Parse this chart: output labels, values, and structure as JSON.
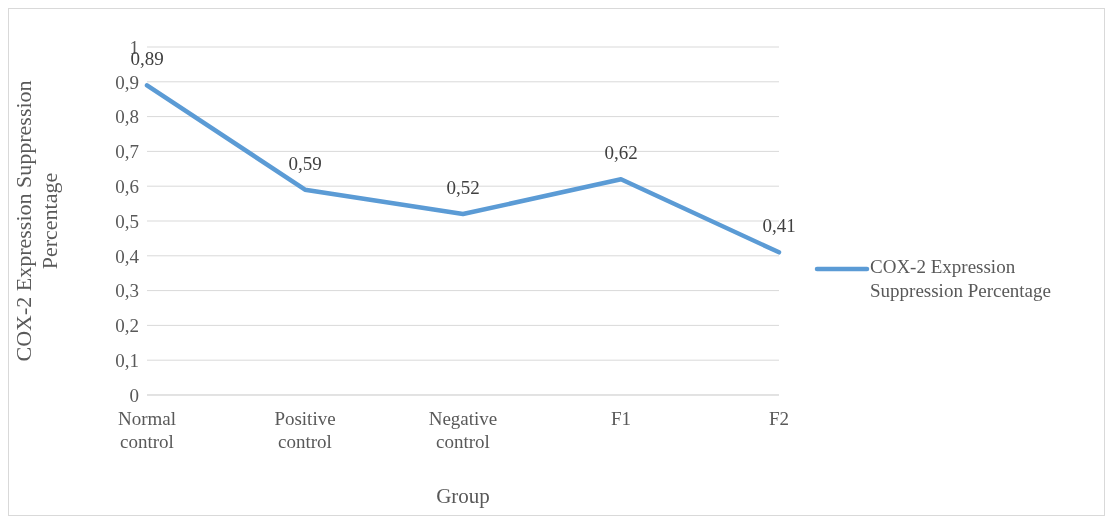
{
  "chart_data": {
    "type": "line",
    "xlabel": "Group",
    "ylabel": "COX-2 Expression Suppression Percentage",
    "categories": [
      "Normal control",
      "Positive control",
      "Negative control",
      "F1",
      "F2"
    ],
    "series": [
      {
        "name": "COX-2 Expression Suppression Percentage",
        "color": "#5b9bd5",
        "values": [
          0.89,
          0.59,
          0.52,
          0.62,
          0.41
        ],
        "value_labels": [
          "0,89",
          "0,59",
          "0,52",
          "0,62",
          "0,41"
        ]
      }
    ],
    "ylim": [
      0,
      1
    ],
    "yticks": [
      {
        "value": 0,
        "label": "0"
      },
      {
        "value": 0.1,
        "label": "0,1"
      },
      {
        "value": 0.2,
        "label": "0,2"
      },
      {
        "value": 0.3,
        "label": "0,3"
      },
      {
        "value": 0.4,
        "label": "0,4"
      },
      {
        "value": 0.5,
        "label": "0,5"
      },
      {
        "value": 0.6,
        "label": "0,6"
      },
      {
        "value": 0.7,
        "label": "0,7"
      },
      {
        "value": 0.8,
        "label": "0,8"
      },
      {
        "value": 0.9,
        "label": "0,9"
      },
      {
        "value": 1,
        "label": "1"
      }
    ],
    "grid": "y",
    "legend": "right",
    "marker": "none",
    "line_style": "solid"
  }
}
